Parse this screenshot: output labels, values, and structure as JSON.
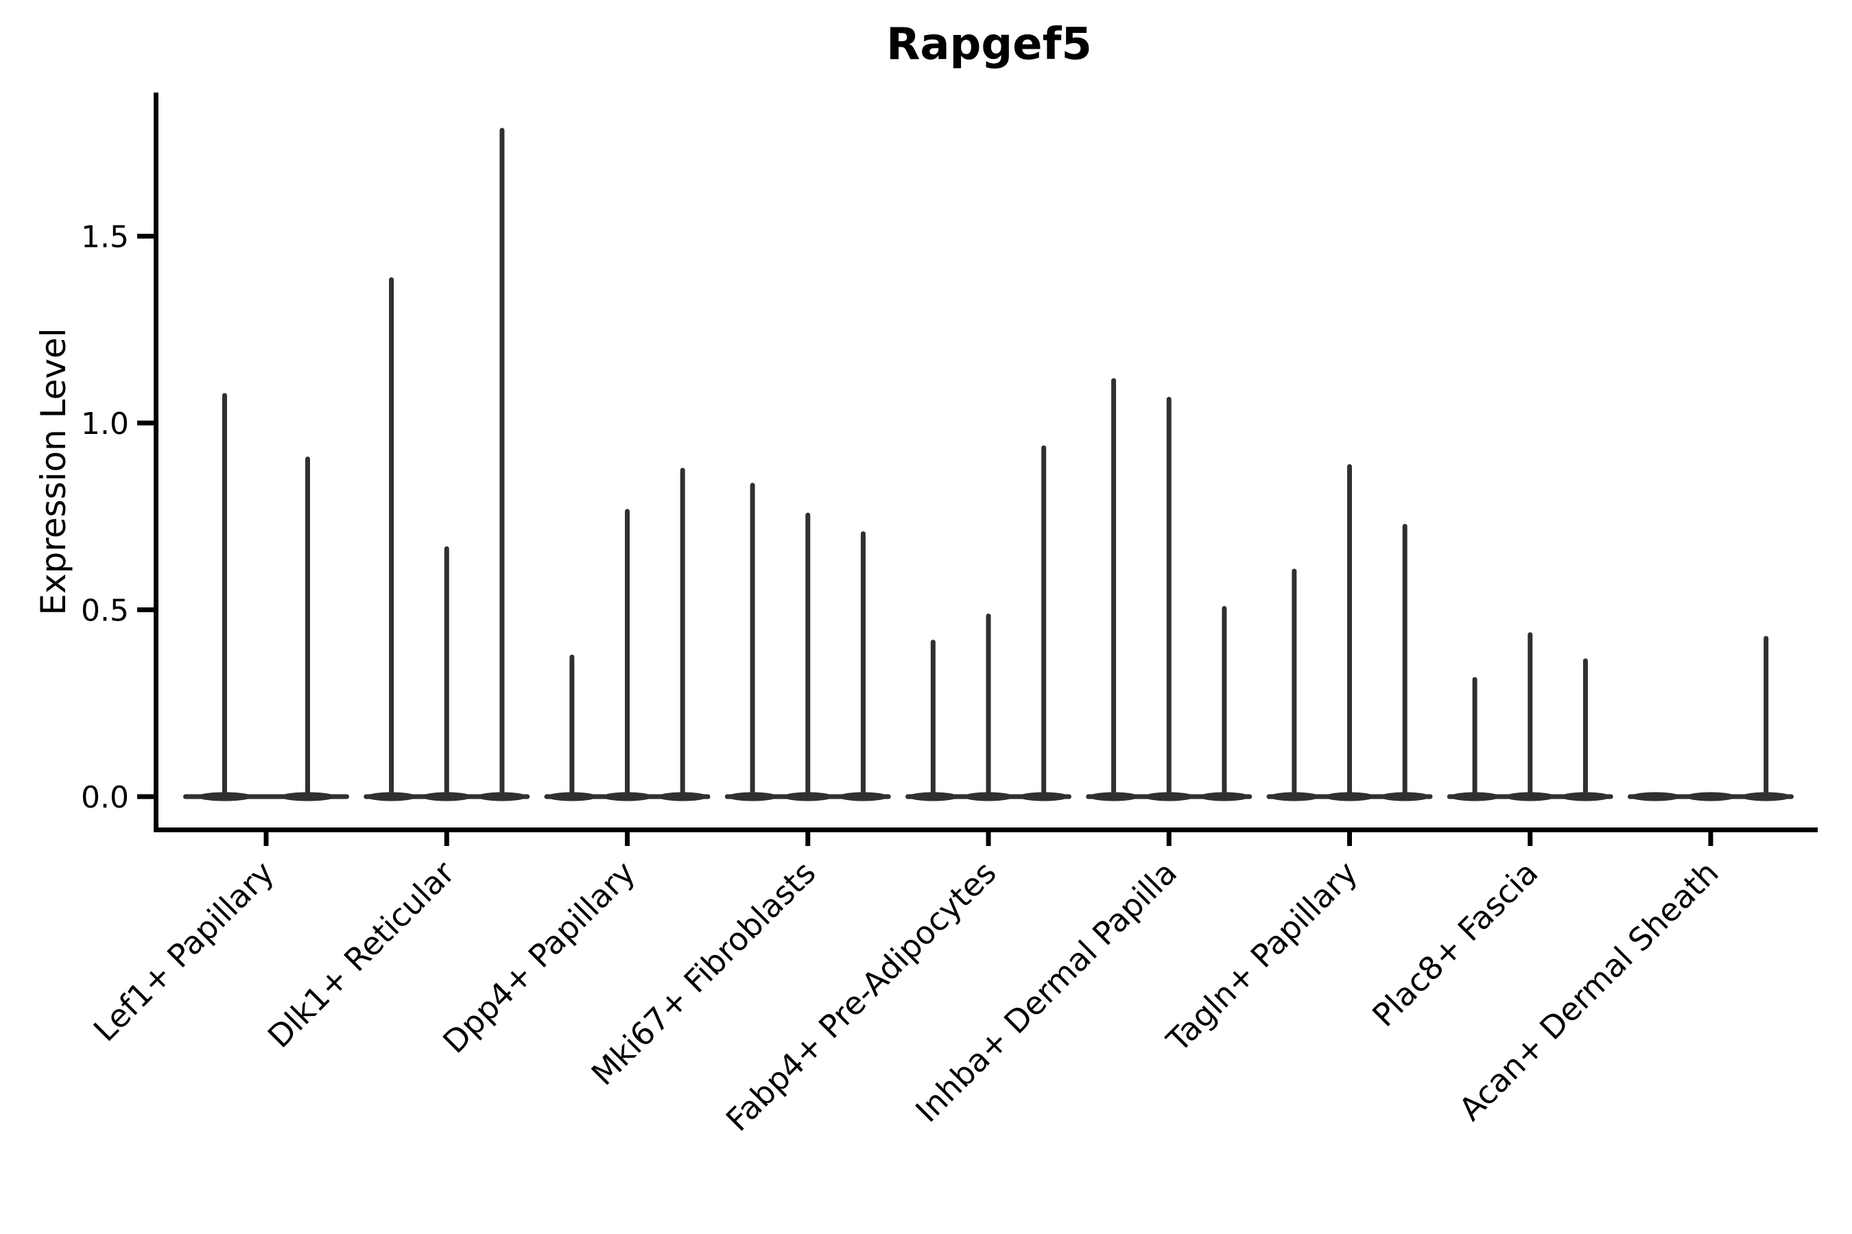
{
  "figure": {
    "title": "Rapgef5",
    "y_axis_label": "Expression Level"
  },
  "chart_data": {
    "type": "violin",
    "title": "Rapgef5",
    "xlabel": "",
    "ylabel": "Expression Level",
    "ylim": [
      -0.09,
      1.89
    ],
    "y_ticks": [
      0.0,
      0.5,
      1.0,
      1.5
    ],
    "y_tick_labels": [
      "0.0",
      "0.5",
      "1.0",
      "1.5"
    ],
    "grid": false,
    "legend": "none",
    "x_tick_rotation_degrees": 45,
    "violin_style": "distributions collapsed flat at 0 with a thin vertical spike up to the max expression value per violin",
    "categories": [
      "Lef1+ Papillary",
      "Dlk1+ Reticular",
      "Dpp4+ Papillary",
      "Mki67+ Fibroblasts",
      "Fabp4+ Pre-Adipocytes",
      "Inhba+ Dermal Papilla",
      "Tagln+ Papillary",
      "Plac8+ Fascia",
      "Acan+ Dermal Sheath"
    ],
    "groups": [
      {
        "category": "Lef1+ Papillary",
        "violin_max_values": [
          1.08,
          0.91
        ]
      },
      {
        "category": "Dlk1+ Reticular",
        "violin_max_values": [
          1.39,
          0.67,
          1.79
        ]
      },
      {
        "category": "Dpp4+ Papillary",
        "violin_max_values": [
          0.38,
          0.77,
          0.88
        ]
      },
      {
        "category": "Mki67+ Fibroblasts",
        "violin_max_values": [
          0.84,
          0.76,
          0.71
        ]
      },
      {
        "category": "Fabp4+ Pre-Adipocytes",
        "violin_max_values": [
          0.42,
          0.49,
          0.94
        ]
      },
      {
        "category": "Inhba+ Dermal Papilla",
        "violin_max_values": [
          1.12,
          1.07,
          0.51
        ]
      },
      {
        "category": "Tagln+ Papillary",
        "violin_max_values": [
          0.61,
          0.89,
          0.73
        ]
      },
      {
        "category": "Plac8+ Fascia",
        "violin_max_values": [
          0.32,
          0.44,
          0.37
        ]
      },
      {
        "category": "Acan+ Dermal Sheath",
        "violin_max_values": [
          0,
          0,
          0.43
        ]
      }
    ]
  },
  "style": {
    "violin_color": "#303030",
    "axis_color": "#000000",
    "background_color": "#ffffff"
  }
}
